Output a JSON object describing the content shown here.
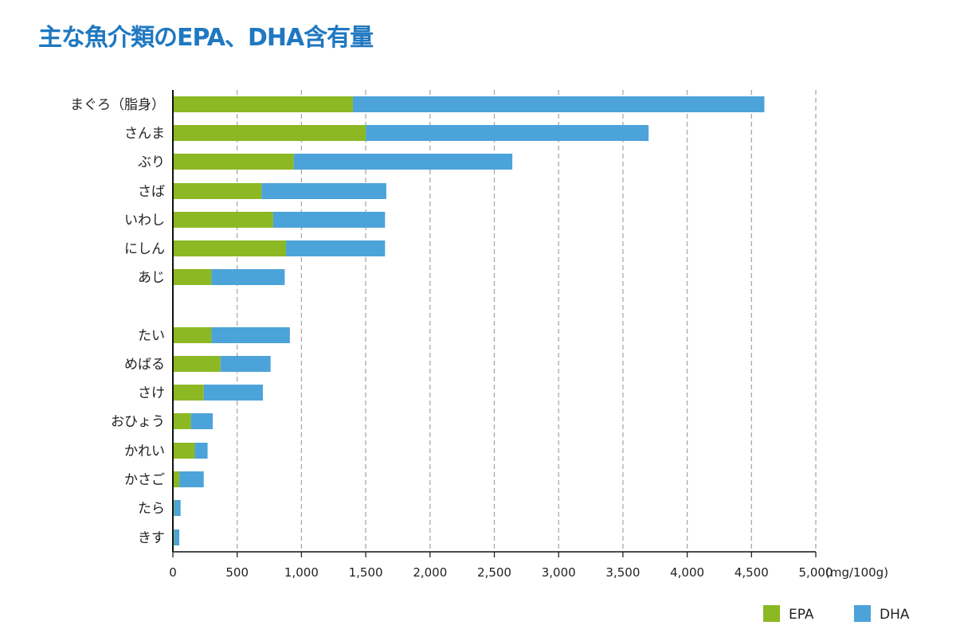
{
  "chart_data": {
    "type": "bar",
    "orientation": "horizontal",
    "stacked": true,
    "title": "主な魚介類のEPA、DHA含有量",
    "unit": "(mg/100g)",
    "xlim": [
      0,
      5000
    ],
    "xticks": [
      "0",
      "500",
      "1,000",
      "1,500",
      "2,000",
      "2,500",
      "3,000",
      "3,500",
      "4,000",
      "4,500",
      "5,000"
    ],
    "grid": "vertical dashed",
    "legend_position": "bottom-right",
    "categories": [
      "まぐろ（脂身）",
      "さんま",
      "ぶり",
      "さば",
      "いわし",
      "にしん",
      "あじ",
      "たい",
      "めばる",
      "さけ",
      "おひょう",
      "かれい",
      "かさご",
      "たら",
      "きす"
    ],
    "series": [
      {
        "name": "EPA",
        "color": "#8cb823",
        "values": [
          1400,
          1500,
          940,
          690,
          780,
          880,
          300,
          300,
          370,
          240,
          140,
          170,
          50,
          10,
          10
        ]
      },
      {
        "name": "DHA",
        "color": "#4ca3d9",
        "values": [
          3200,
          2200,
          1700,
          970,
          870,
          770,
          570,
          610,
          390,
          460,
          170,
          100,
          190,
          50,
          40
        ]
      }
    ]
  }
}
